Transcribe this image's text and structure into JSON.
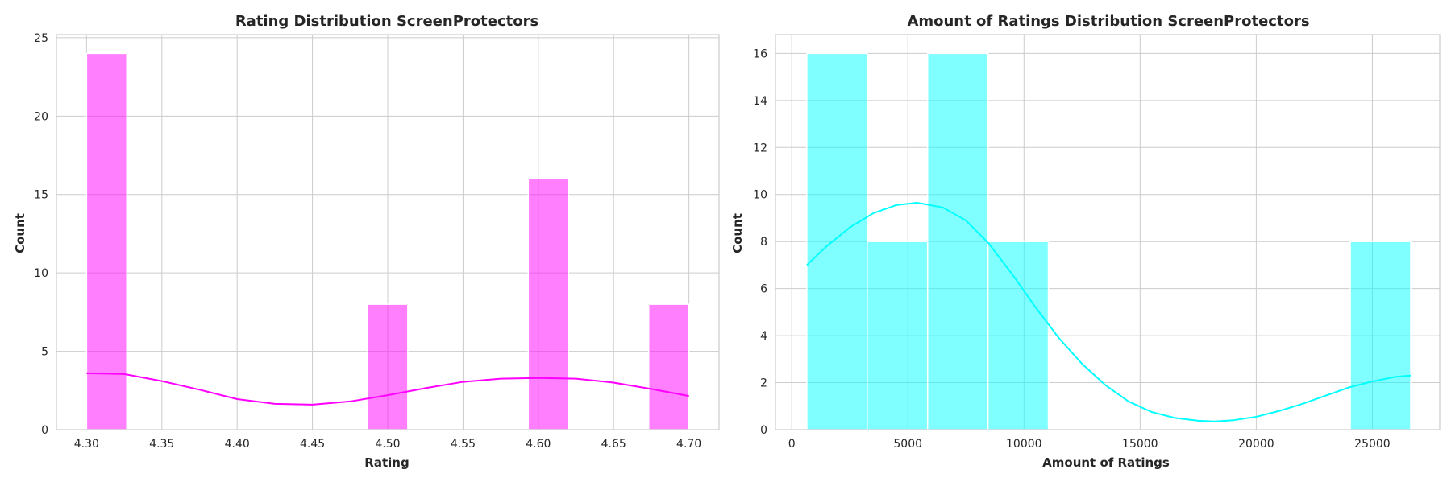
{
  "chart_data": [
    {
      "type": "histogram",
      "title": "Rating Distribution ScreenProtectors",
      "xlabel": "Rating",
      "ylabel": "Count",
      "xlim": [
        4.28,
        4.72
      ],
      "ylim": [
        0,
        25.2
      ],
      "xticks": [
        4.3,
        4.35,
        4.4,
        4.45,
        4.5,
        4.55,
        4.6,
        4.65,
        4.7
      ],
      "xtick_labels": [
        "4.30",
        "4.35",
        "4.40",
        "4.45",
        "4.50",
        "4.55",
        "4.60",
        "4.65",
        "4.70"
      ],
      "yticks": [
        0,
        5,
        10,
        15,
        20,
        25
      ],
      "ytick_labels": [
        "0",
        "5",
        "10",
        "15",
        "20",
        "25"
      ],
      "bins": [
        {
          "x0": 4.3,
          "x1": 4.3267,
          "count": 24
        },
        {
          "x0": 4.4867,
          "x1": 4.5133,
          "count": 8
        },
        {
          "x0": 4.5933,
          "x1": 4.62,
          "count": 16
        },
        {
          "x0": 4.6733,
          "x1": 4.7,
          "count": 8
        }
      ],
      "kde": [
        [
          4.3,
          3.6
        ],
        [
          4.325,
          3.55
        ],
        [
          4.35,
          3.1
        ],
        [
          4.375,
          2.55
        ],
        [
          4.4,
          1.95
        ],
        [
          4.425,
          1.65
        ],
        [
          4.45,
          1.6
        ],
        [
          4.475,
          1.8
        ],
        [
          4.5,
          2.2
        ],
        [
          4.525,
          2.65
        ],
        [
          4.55,
          3.05
        ],
        [
          4.575,
          3.25
        ],
        [
          4.6,
          3.3
        ],
        [
          4.625,
          3.25
        ],
        [
          4.65,
          3.0
        ],
        [
          4.675,
          2.6
        ],
        [
          4.7,
          2.15
        ]
      ],
      "grid": true,
      "color": "#ff00ff",
      "bar_opacity": 0.5
    },
    {
      "type": "histogram",
      "title": "Amount of Ratings Distribution ScreenProtectors",
      "xlabel": "Amount of Ratings",
      "ylabel": "Count",
      "xlim": [
        -700,
        27900
      ],
      "ylim": [
        0,
        16.8
      ],
      "xticks": [
        0,
        5000,
        10000,
        15000,
        20000,
        25000
      ],
      "xtick_labels": [
        "0",
        "5000",
        "10000",
        "15000",
        "20000",
        "25000"
      ],
      "yticks": [
        0,
        2,
        4,
        6,
        8,
        10,
        12,
        14,
        16
      ],
      "ytick_labels": [
        "0",
        "2",
        "4",
        "6",
        "8",
        "10",
        "12",
        "14",
        "16"
      ],
      "bins": [
        {
          "x0": 650,
          "x1": 3250,
          "count": 16
        },
        {
          "x0": 3250,
          "x1": 5850,
          "count": 8
        },
        {
          "x0": 5850,
          "x1": 8450,
          "count": 16
        },
        {
          "x0": 8450,
          "x1": 11050,
          "count": 8
        },
        {
          "x0": 24050,
          "x1": 26650,
          "count": 8
        }
      ],
      "kde": [
        [
          650,
          7.0
        ],
        [
          1500,
          7.8
        ],
        [
          2500,
          8.6
        ],
        [
          3500,
          9.2
        ],
        [
          4500,
          9.55
        ],
        [
          5400,
          9.65
        ],
        [
          6500,
          9.45
        ],
        [
          7500,
          8.9
        ],
        [
          8500,
          7.9
        ],
        [
          9500,
          6.6
        ],
        [
          10500,
          5.2
        ],
        [
          11500,
          3.9
        ],
        [
          12500,
          2.8
        ],
        [
          13500,
          1.9
        ],
        [
          14500,
          1.2
        ],
        [
          15500,
          0.75
        ],
        [
          16500,
          0.5
        ],
        [
          17500,
          0.38
        ],
        [
          18200,
          0.35
        ],
        [
          19000,
          0.4
        ],
        [
          20000,
          0.55
        ],
        [
          21000,
          0.8
        ],
        [
          22000,
          1.1
        ],
        [
          23000,
          1.45
        ],
        [
          24000,
          1.8
        ],
        [
          25000,
          2.05
        ],
        [
          26000,
          2.25
        ],
        [
          26650,
          2.3
        ]
      ],
      "grid": true,
      "color": "#00ffff",
      "bar_opacity": 0.5
    }
  ]
}
